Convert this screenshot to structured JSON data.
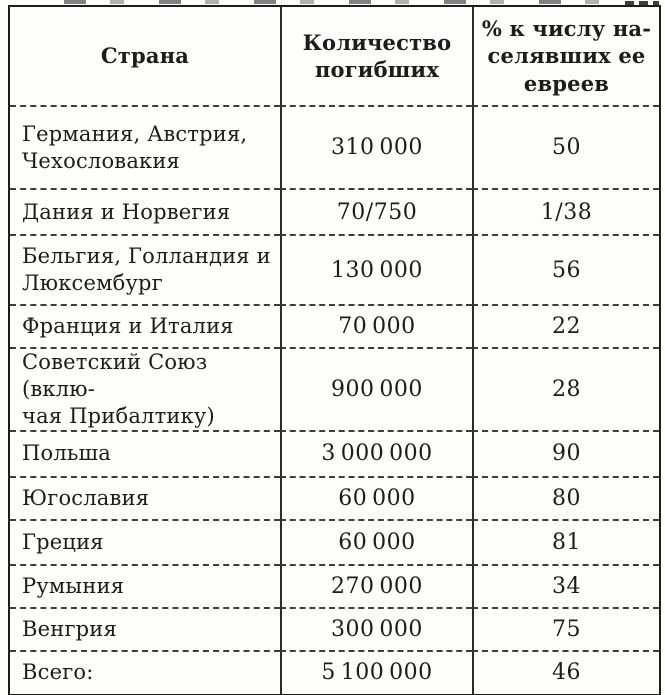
{
  "colors": {
    "paper": "#fdfdfb",
    "ink": "#1c1c1c",
    "rule_line": "#2b2b2b"
  },
  "table": {
    "columns": [
      "Страна",
      "Количество\nпогибших",
      "% к числу на-\nселявших ее\nевреев"
    ],
    "rows": [
      {
        "country": "Германия, Австрия,\nЧехословакия",
        "deaths": "310 000",
        "percent": "50"
      },
      {
        "country": "Дания и Норвегия",
        "deaths": "70/750",
        "percent": "1/38"
      },
      {
        "country": "Бельгия, Голландия и\nЛюксембург",
        "deaths": "130 000",
        "percent": "56"
      },
      {
        "country": "Франция и Италия",
        "deaths": "70 000",
        "percent": "22"
      },
      {
        "country": "Советский Союз (вклю-\nчая Прибалтику)",
        "deaths": "900 000",
        "percent": "28"
      },
      {
        "country": "Польша",
        "deaths": "3 000 000",
        "percent": "90"
      },
      {
        "country": "Югославия",
        "deaths": "60 000",
        "percent": "80"
      },
      {
        "country": "Греция",
        "deaths": "60 000",
        "percent": "81"
      },
      {
        "country": "Румыния",
        "deaths": "270 000",
        "percent": "34"
      },
      {
        "country": "Венгрия",
        "deaths": "300 000",
        "percent": "75"
      },
      {
        "country": "Всего:",
        "deaths": "5 100 000",
        "percent": "46"
      }
    ]
  }
}
